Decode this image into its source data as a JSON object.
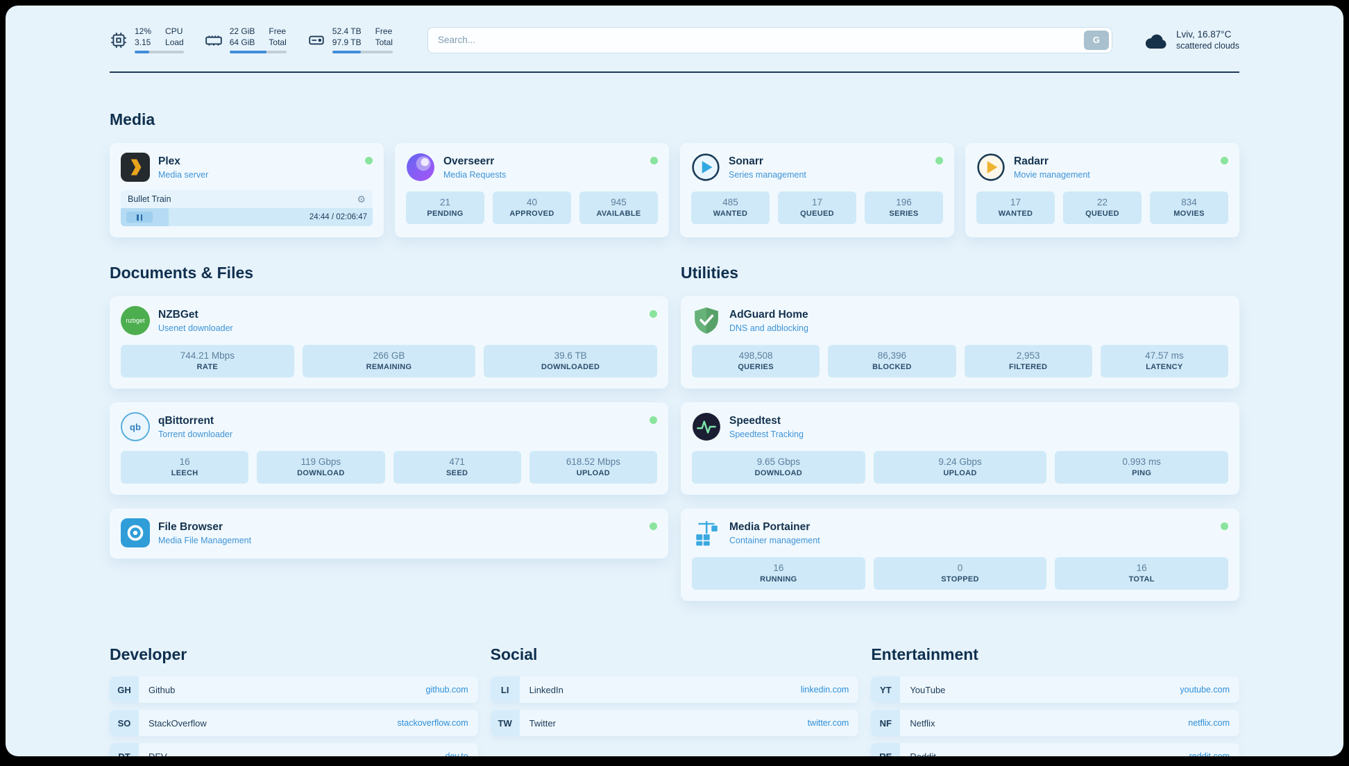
{
  "topbar": {
    "cpu": {
      "usage": "12%",
      "load": "3.15",
      "label_top": "CPU",
      "label_bottom": "Load",
      "progress_pct": 30
    },
    "ram": {
      "free": "22 GiB",
      "total": "64 GiB",
      "label_top": "Free",
      "label_bottom": "Total",
      "progress_pct": 65
    },
    "disk": {
      "free": "52.4 TB",
      "total": "97.9 TB",
      "label_top": "Free",
      "label_bottom": "Total",
      "progress_pct": 47
    },
    "search": {
      "placeholder": "Search...",
      "engine_button": "G"
    },
    "weather": {
      "location": "Lviv, 16.87°C",
      "condition": "scattered clouds"
    }
  },
  "sections": {
    "media": "Media",
    "documents": "Documents & Files",
    "utilities": "Utilities"
  },
  "services": {
    "plex": {
      "name": "Plex",
      "subtitle": "Media server",
      "now_playing": "Bullet Train",
      "time": "24:44 / 02:06:47",
      "progress_pct": 19
    },
    "overseerr": {
      "name": "Overseerr",
      "subtitle": "Media Requests",
      "stats": [
        {
          "value": "21",
          "label": "PENDING"
        },
        {
          "value": "40",
          "label": "APPROVED"
        },
        {
          "value": "945",
          "label": "AVAILABLE"
        }
      ]
    },
    "sonarr": {
      "name": "Sonarr",
      "subtitle": "Series management",
      "stats": [
        {
          "value": "485",
          "label": "WANTED"
        },
        {
          "value": "17",
          "label": "QUEUED"
        },
        {
          "value": "196",
          "label": "SERIES"
        }
      ]
    },
    "radarr": {
      "name": "Radarr",
      "subtitle": "Movie management",
      "stats": [
        {
          "value": "17",
          "label": "WANTED"
        },
        {
          "value": "22",
          "label": "QUEUED"
        },
        {
          "value": "834",
          "label": "MOVIES"
        }
      ]
    },
    "nzbget": {
      "name": "NZBGet",
      "subtitle": "Usenet downloader",
      "stats": [
        {
          "value": "744.21 Mbps",
          "label": "RATE"
        },
        {
          "value": "266 GB",
          "label": "REMAINING"
        },
        {
          "value": "39.6 TB",
          "label": "DOWNLOADED"
        }
      ]
    },
    "qbittorrent": {
      "name": "qBittorrent",
      "subtitle": "Torrent downloader",
      "stats": [
        {
          "value": "16",
          "label": "LEECH"
        },
        {
          "value": "119 Gbps",
          "label": "DOWNLOAD"
        },
        {
          "value": "471",
          "label": "SEED"
        },
        {
          "value": "618.52 Mbps",
          "label": "UPLOAD"
        }
      ]
    },
    "filebrowser": {
      "name": "File Browser",
      "subtitle": "Media File Management"
    },
    "adguard": {
      "name": "AdGuard Home",
      "subtitle": "DNS and adblocking",
      "stats": [
        {
          "value": "498,508",
          "label": "QUERIES"
        },
        {
          "value": "86,396",
          "label": "BLOCKED"
        },
        {
          "value": "2,953",
          "label": "FILTERED"
        },
        {
          "value": "47.57 ms",
          "label": "LATENCY"
        }
      ]
    },
    "speedtest": {
      "name": "Speedtest",
      "subtitle": "Speedtest Tracking",
      "stats": [
        {
          "value": "9.65 Gbps",
          "label": "DOWNLOAD"
        },
        {
          "value": "9.24 Gbps",
          "label": "UPLOAD"
        },
        {
          "value": "0.993 ms",
          "label": "PING"
        }
      ]
    },
    "portainer": {
      "name": "Media Portainer",
      "subtitle": "Container management",
      "stats": [
        {
          "value": "16",
          "label": "RUNNING"
        },
        {
          "value": "0",
          "label": "STOPPED"
        },
        {
          "value": "16",
          "label": "TOTAL"
        }
      ]
    }
  },
  "bookmarks": {
    "developer": {
      "title": "Developer",
      "items": [
        {
          "abbr": "GH",
          "name": "Github",
          "url": "github.com"
        },
        {
          "abbr": "SO",
          "name": "StackOverflow",
          "url": "stackoverflow.com"
        },
        {
          "abbr": "DT",
          "name": "DEV",
          "url": "dev.to"
        }
      ]
    },
    "social": {
      "title": "Social",
      "items": [
        {
          "abbr": "LI",
          "name": "LinkedIn",
          "url": "linkedin.com"
        },
        {
          "abbr": "TW",
          "name": "Twitter",
          "url": "twitter.com"
        }
      ]
    },
    "entertainment": {
      "title": "Entertainment",
      "items": [
        {
          "abbr": "YT",
          "name": "YouTube",
          "url": "youtube.com"
        },
        {
          "abbr": "NF",
          "name": "Netflix",
          "url": "netflix.com"
        },
        {
          "abbr": "RE",
          "name": "Reddit",
          "url": "reddit.com"
        }
      ]
    }
  },
  "icons": {
    "gear": "⚙",
    "nzbget_label": "nzbget",
    "qbittorrent_label": "qb"
  },
  "colors": {
    "accent": "#2e8fd8",
    "status-ok": "#8ae49d",
    "stat-bg": "#cfe9f8",
    "navy": "#16324d",
    "page-bg": "#e7f3fb",
    "card-bg": "#f1f9fe"
  }
}
